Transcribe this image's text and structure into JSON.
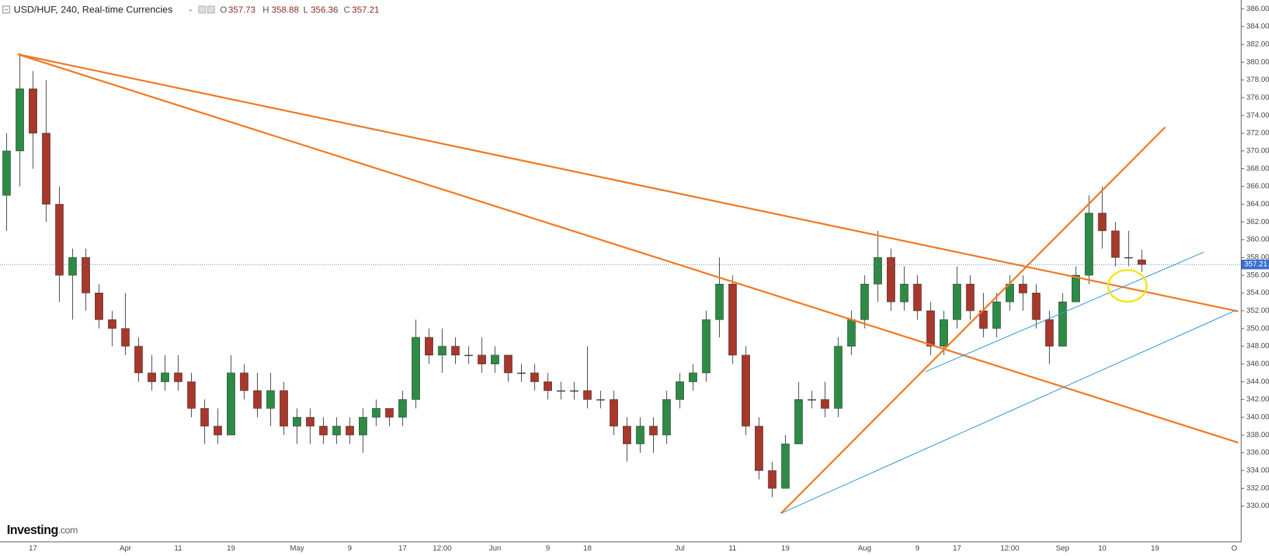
{
  "chart_data": {
    "type": "candlestick",
    "title": "USD/HUF, 240, Real-time Currencies",
    "ohlc_labels": [
      "O",
      "H",
      "L",
      "C"
    ],
    "logo": "Investing",
    "logo_suffix": ".com",
    "up_color": "#2e8b46",
    "down_color": "#a8372c",
    "last_price_line": true,
    "grid": false,
    "categories": [
      null,
      null,
      "17",
      null,
      null,
      null,
      null,
      null,
      null,
      "Apr",
      null,
      null,
      null,
      "11",
      null,
      null,
      null,
      "19",
      null,
      null,
      null,
      null,
      "May",
      null,
      null,
      null,
      "9",
      null,
      null,
      null,
      "17",
      null,
      null,
      "12:00",
      null,
      null,
      null,
      "Jun",
      null,
      null,
      null,
      "9",
      null,
      null,
      "18",
      null,
      null,
      null,
      null,
      null,
      null,
      "Jul",
      null,
      null,
      null,
      "11",
      null,
      null,
      null,
      "19",
      null,
      null,
      null,
      null,
      null,
      "Aug",
      null,
      null,
      null,
      "9",
      null,
      null,
      "17",
      null,
      null,
      null,
      "12:00",
      null,
      null,
      null,
      "Sep",
      null,
      null,
      "10",
      null,
      null,
      null,
      "19",
      null,
      null,
      null,
      null,
      null,
      "O"
    ],
    "open": [
      365,
      370,
      377,
      372,
      364,
      356,
      358,
      354,
      351,
      350,
      348,
      345,
      344,
      345,
      344,
      341,
      339,
      338,
      345,
      343,
      341,
      343,
      339,
      340,
      339,
      338,
      339,
      338,
      340,
      341,
      340,
      342,
      349,
      347,
      348,
      347,
      347,
      346,
      347,
      345,
      345,
      344,
      343,
      343,
      343,
      342,
      342,
      339,
      337,
      339,
      338,
      342,
      344,
      345,
      351,
      355,
      347,
      339,
      334,
      332,
      337,
      342,
      342,
      341,
      348,
      351,
      355,
      358,
      353,
      355,
      352,
      348,
      351,
      355,
      352,
      350,
      353,
      355,
      354,
      351,
      348,
      353,
      356,
      363,
      361,
      358,
      357.73,
      null,
      null,
      null,
      null,
      null,
      null,
      null
    ],
    "high": [
      372,
      381,
      379,
      378,
      366,
      359,
      359,
      355,
      352,
      354,
      349,
      347,
      347,
      347,
      345,
      342,
      341,
      347,
      346,
      345,
      345,
      344,
      341,
      341,
      340,
      340,
      340,
      341,
      342,
      341,
      343,
      351,
      350,
      350,
      349,
      348,
      349,
      348,
      347,
      346,
      346,
      345,
      344,
      344,
      348,
      343,
      343,
      340,
      340,
      340,
      343,
      345,
      346,
      352,
      358,
      356,
      348,
      340,
      335,
      338,
      344,
      343,
      344,
      349,
      352,
      356,
      361,
      359,
      357,
      356,
      353,
      352,
      357,
      356,
      354,
      354,
      356,
      356,
      355,
      352,
      354,
      357,
      365,
      366,
      362,
      361,
      358.88,
      null,
      null,
      null,
      null,
      null,
      null,
      null
    ],
    "low": [
      361,
      366,
      368,
      362,
      353,
      351,
      352,
      350,
      348,
      347,
      344,
      343,
      343,
      343,
      340,
      337,
      337,
      338,
      342,
      340,
      339,
      338,
      337,
      337,
      337,
      337,
      337,
      336,
      339,
      339,
      339,
      341,
      346,
      345,
      346,
      346,
      345,
      345,
      344,
      344,
      343,
      342,
      342,
      342,
      341,
      341,
      338,
      335,
      336,
      336,
      337,
      341,
      343,
      344,
      349,
      346,
      338,
      333,
      331,
      332,
      337,
      341,
      340,
      340,
      347,
      350,
      353,
      352,
      352,
      351,
      347,
      347,
      350,
      351,
      349,
      349,
      352,
      352,
      350,
      346,
      348,
      353,
      355,
      359,
      357,
      357,
      356.36,
      null,
      null,
      null,
      null,
      null,
      null,
      null
    ],
    "close": [
      370,
      377,
      372,
      364,
      356,
      358,
      354,
      351,
      350,
      348,
      345,
      344,
      345,
      344,
      341,
      339,
      338,
      345,
      343,
      341,
      343,
      339,
      340,
      339,
      338,
      339,
      338,
      340,
      341,
      340,
      342,
      349,
      347,
      348,
      347,
      347,
      346,
      347,
      345,
      345,
      344,
      343,
      343,
      343,
      342,
      342,
      339,
      337,
      339,
      338,
      342,
      344,
      345,
      351,
      355,
      347,
      339,
      334,
      332,
      337,
      342,
      342,
      341,
      348,
      351,
      355,
      358,
      353,
      355,
      352,
      348,
      351,
      355,
      352,
      350,
      353,
      355,
      354,
      351,
      348,
      353,
      356,
      363,
      361,
      358,
      358,
      357.21,
      null,
      null,
      null,
      null,
      null,
      null,
      null
    ],
    "ylim": [
      326,
      387
    ],
    "yticks": [
      {
        "value": 330,
        "label": "330.00"
      },
      {
        "value": 332,
        "label": "332.00"
      },
      {
        "value": 334,
        "label": "334.00"
      },
      {
        "value": 336,
        "label": "336.00"
      },
      {
        "value": 338,
        "label": "338.00"
      },
      {
        "value": 340,
        "label": "340.00"
      },
      {
        "value": 342,
        "label": "342.00"
      },
      {
        "value": 344,
        "label": "344.00"
      },
      {
        "value": 346,
        "label": "346.00"
      },
      {
        "value": 348,
        "label": "348.00"
      },
      {
        "value": 350,
        "label": "350.00"
      },
      {
        "value": 352,
        "label": "352.00"
      },
      {
        "value": 354,
        "label": "354.00"
      },
      {
        "value": 356,
        "label": "356.00"
      },
      {
        "value": 358,
        "label": "358.00"
      },
      {
        "value": 360,
        "label": "360.00"
      },
      {
        "value": 362,
        "label": "362.00"
      },
      {
        "value": 364,
        "label": "364.00"
      },
      {
        "value": 366,
        "label": "366.00"
      },
      {
        "value": 368,
        "label": "368.00"
      },
      {
        "value": 370,
        "label": "370.00"
      },
      {
        "value": 372,
        "label": "372.00"
      },
      {
        "value": 374,
        "label": "374.00"
      },
      {
        "value": 376,
        "label": "376.00"
      },
      {
        "value": 378,
        "label": "378.00"
      },
      {
        "value": 380,
        "label": "380.00"
      },
      {
        "value": 382,
        "label": "382.00"
      },
      {
        "value": 384,
        "label": "384.00"
      },
      {
        "value": 386,
        "label": "386.00"
      }
    ]
  }
}
